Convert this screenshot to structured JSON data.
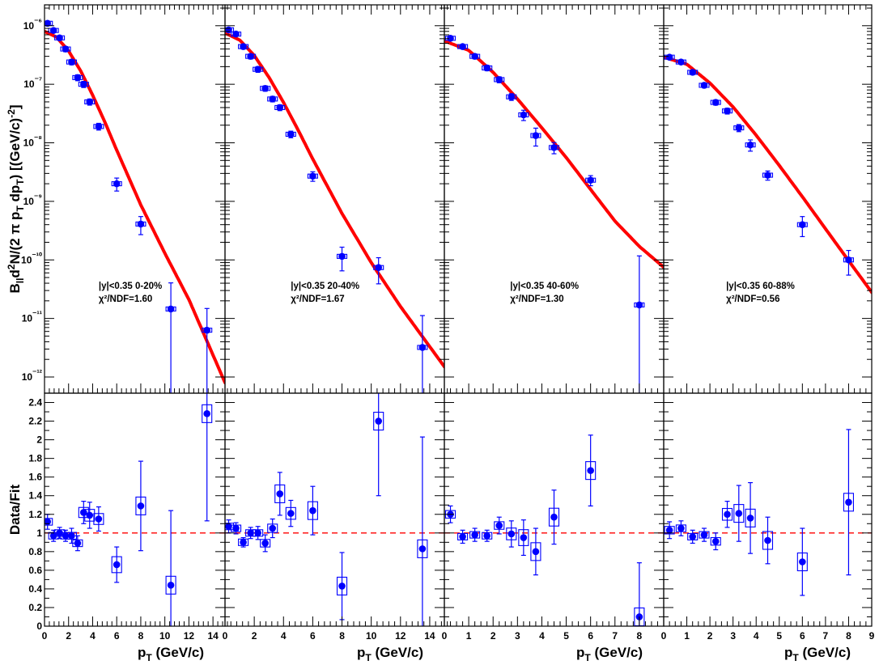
{
  "figure": {
    "y_label_top": "B_ll d²N/(2 π p_T dp_T) [(GeV/c)⁻²]",
    "y_label_bottom": "Data/Fit",
    "x_label": "p_T (GeV/c)",
    "colors": {
      "data": "#0000ff",
      "fit": "#ff0000",
      "reference": "#ff0000"
    }
  },
  "chart_data": [
    {
      "type": "scatter",
      "role": "spectrum",
      "label_rapidity": "|y|<0.35 0-20%",
      "label_chi2": "χ²/NDF=1.60",
      "log_y": true,
      "ylim": [
        1e-12,
        2e-06
      ],
      "y_tick_labels": [
        "10⁻⁶",
        "10⁻⁷",
        "10⁻⁸",
        "10⁻⁹",
        "10⁻¹⁰",
        "10⁻¹¹",
        "10⁻¹²"
      ],
      "xlim": [
        0,
        15
      ],
      "x_tick_labels": [
        "0",
        "2",
        "4",
        "6",
        "8",
        "10",
        "12",
        "14"
      ],
      "series": [
        {
          "x": [
            0.25,
            0.75,
            1.25,
            1.75,
            2.25,
            2.75,
            3.25,
            3.75,
            4.5,
            6.0,
            8.0,
            10.5,
            13.5
          ],
          "y": [
            1.1e-06,
            8.3e-07,
            6.2e-07,
            4e-07,
            2.4e-07,
            1.3e-07,
            1e-07,
            5e-08,
            1.9e-08,
            2e-09,
            4.1e-10,
            1.45e-11,
            6.3e-12
          ],
          "y_err": [
            8e-08,
            6e-08,
            5e-08,
            4e-08,
            2.5e-08,
            1.5e-08,
            1.2e-08,
            6e-09,
            2.5e-09,
            5e-10,
            1.4e-10,
            2.6e-11,
            8.5e-12
          ]
        }
      ],
      "fit": {
        "x": [
          0,
          1,
          2,
          3,
          4,
          5,
          6,
          8,
          10,
          12,
          15
        ],
        "y": [
          8e-07,
          6.4e-07,
          3.7e-07,
          1.7e-07,
          6.5e-08,
          2.3e-08,
          7.5e-09,
          8.7e-10,
          1.3e-10,
          2.1e-11,
          8e-13
        ]
      }
    },
    {
      "type": "scatter",
      "role": "spectrum",
      "label_rapidity": "|y|<0.35 20-40%",
      "label_chi2": "χ²/NDF=1.67",
      "log_y": true,
      "ylim": [
        1e-12,
        2e-06
      ],
      "xlim": [
        0,
        15
      ],
      "x_tick_labels": [
        "0",
        "2",
        "4",
        "6",
        "8",
        "10",
        "12",
        "14"
      ],
      "series": [
        {
          "x": [
            0.25,
            0.75,
            1.25,
            1.75,
            2.25,
            2.75,
            3.25,
            3.75,
            4.5,
            6.0,
            8.0,
            10.5,
            13.5
          ],
          "y": [
            8.5e-07,
            7.2e-07,
            4.4e-07,
            3e-07,
            1.8e-07,
            8.5e-08,
            5.6e-08,
            4e-08,
            1.4e-08,
            2.7e-09,
            1.15e-10,
            7.4e-11,
            3.2e-12
          ],
          "y_err": [
            6e-08,
            5e-08,
            4e-08,
            3e-08,
            2e-08,
            9e-09,
            6e-09,
            4.5e-09,
            1.8e-09,
            5e-10,
            5e-11,
            3.5e-11,
            8e-12
          ]
        }
      ],
      "fit": {
        "x": [
          0,
          1,
          2,
          3,
          4,
          5,
          6,
          8,
          10,
          12,
          15
        ],
        "y": [
          7.5e-07,
          5.7e-07,
          3.1e-07,
          1.32e-07,
          4.9e-08,
          1.65e-08,
          5.3e-09,
          6.2e-10,
          9e-11,
          1.6e-11,
          1.5e-12
        ]
      }
    },
    {
      "type": "scatter",
      "role": "spectrum",
      "label_rapidity": "|y|<0.35 40-60%",
      "label_chi2": "χ²/NDF=1.30",
      "log_y": true,
      "ylim": [
        1e-12,
        2e-06
      ],
      "xlim": [
        0,
        9
      ],
      "x_tick_labels": [
        "0",
        "1",
        "2",
        "3",
        "4",
        "5",
        "6",
        "7",
        "8"
      ],
      "series": [
        {
          "x": [
            0.25,
            0.75,
            1.25,
            1.75,
            2.25,
            2.75,
            3.25,
            3.75,
            4.5,
            6.0,
            8.0
          ],
          "y": [
            6.1e-07,
            4.4e-07,
            3e-07,
            1.9e-07,
            1.2e-07,
            6.1e-08,
            3e-08,
            1.33e-08,
            8.3e-09,
            2.3e-09,
            1.7e-11
          ],
          "y_err": [
            5e-08,
            3.5e-08,
            2.8e-08,
            2e-08,
            1.4e-08,
            8e-09,
            6e-09,
            4.5e-09,
            1.8e-09,
            4.5e-10,
            1e-10
          ]
        }
      ],
      "fit": {
        "x": [
          0,
          1,
          2,
          3,
          4,
          5,
          6,
          7,
          8,
          9
        ],
        "y": [
          5.5e-07,
          3.8e-07,
          1.6e-07,
          5.6e-08,
          1.8e-08,
          5.6e-09,
          1.6e-09,
          4.6e-10,
          1.7e-10,
          7.5e-11
        ]
      }
    },
    {
      "type": "scatter",
      "role": "spectrum",
      "label_rapidity": "|y|<0.35 60-88%",
      "label_chi2": "χ²/NDF=0.56",
      "log_y": true,
      "ylim": [
        1e-12,
        2e-06
      ],
      "xlim": [
        0,
        9
      ],
      "x_tick_labels": [
        "0",
        "1",
        "2",
        "3",
        "4",
        "5",
        "6",
        "7",
        "8",
        "9"
      ],
      "series": [
        {
          "x": [
            0.25,
            0.75,
            1.25,
            1.75,
            2.25,
            2.75,
            3.25,
            3.75,
            4.5,
            6.0,
            8.0
          ],
          "y": [
            2.9e-07,
            2.4e-07,
            1.6e-07,
            9.6e-08,
            4.9e-08,
            3.5e-08,
            1.8e-08,
            9.2e-09,
            2.8e-09,
            4e-10,
            1e-10
          ],
          "y_err": [
            2e-08,
            1.8e-08,
            1.4e-08,
            9e-09,
            5e-09,
            4e-09,
            2.5e-09,
            2e-09,
            5e-10,
            1.5e-10,
            4.5e-11
          ]
        }
      ],
      "fit": {
        "x": [
          0,
          1,
          2,
          3,
          4,
          5,
          6,
          7,
          8,
          9
        ],
        "y": [
          2.9e-07,
          2.2e-07,
          1.05e-07,
          4.1e-08,
          1.35e-08,
          4.1e-09,
          1.2e-09,
          3.4e-10,
          9.7e-11,
          2.8e-11
        ]
      }
    },
    {
      "type": "scatter",
      "role": "ratio",
      "ylim": [
        0,
        2.5
      ],
      "y_tick_labels": [
        "0",
        "0.2",
        "0.4",
        "0.6",
        "0.8",
        "1",
        "1.2",
        "1.4",
        "1.6",
        "1.8",
        "2",
        "2.2",
        "2.4"
      ],
      "xlim": [
        0,
        15
      ],
      "x_tick_labels": [
        "0",
        "2",
        "4",
        "6",
        "8",
        "10",
        "12",
        "14"
      ],
      "reference_y": 1,
      "series": [
        {
          "x": [
            0.25,
            0.75,
            1.25,
            1.75,
            2.25,
            2.75,
            3.25,
            3.75,
            4.5,
            6.0,
            8.0,
            10.5,
            13.5
          ],
          "y": [
            1.12,
            0.97,
            1.0,
            0.97,
            0.97,
            0.89,
            1.22,
            1.19,
            1.15,
            0.66,
            1.29,
            0.44,
            2.28
          ],
          "y_err": [
            0.08,
            0.06,
            0.06,
            0.06,
            0.08,
            0.08,
            0.12,
            0.14,
            0.13,
            0.19,
            0.48,
            0.8,
            1.15
          ]
        }
      ]
    },
    {
      "type": "scatter",
      "role": "ratio",
      "ylim": [
        0,
        2.5
      ],
      "xlim": [
        0,
        15
      ],
      "x_tick_labels": [
        "0",
        "2",
        "4",
        "6",
        "8",
        "10",
        "12",
        "14"
      ],
      "reference_y": 1,
      "series": [
        {
          "x": [
            0.25,
            0.75,
            1.25,
            1.75,
            2.25,
            2.75,
            3.25,
            3.75,
            4.5,
            6.0,
            8.0,
            10.5,
            13.5
          ],
          "y": [
            1.07,
            1.05,
            0.9,
            1.0,
            1.0,
            0.89,
            1.05,
            1.42,
            1.21,
            1.24,
            0.43,
            2.2,
            0.83
          ],
          "y_err": [
            0.07,
            0.06,
            0.05,
            0.06,
            0.07,
            0.09,
            0.1,
            0.23,
            0.14,
            0.26,
            0.36,
            0.8,
            1.2
          ]
        }
      ]
    },
    {
      "type": "scatter",
      "role": "ratio",
      "ylim": [
        0,
        2.5
      ],
      "xlim": [
        0,
        9
      ],
      "x_tick_labels": [
        "0",
        "1",
        "2",
        "3",
        "4",
        "5",
        "6",
        "7",
        "8"
      ],
      "reference_y": 1,
      "series": [
        {
          "x": [
            0.25,
            0.75,
            1.25,
            1.75,
            2.25,
            2.75,
            3.25,
            3.75,
            4.5,
            6.0,
            8.0
          ],
          "y": [
            1.2,
            0.96,
            0.98,
            0.97,
            1.08,
            0.99,
            0.95,
            0.8,
            1.17,
            1.67,
            0.1
          ],
          "y_err": [
            0.09,
            0.07,
            0.07,
            0.06,
            0.09,
            0.14,
            0.19,
            0.25,
            0.29,
            0.38,
            0.58
          ]
        }
      ]
    },
    {
      "type": "scatter",
      "role": "ratio",
      "ylim": [
        0,
        2.5
      ],
      "xlim": [
        0,
        9
      ],
      "x_tick_labels": [
        "0",
        "1",
        "2",
        "3",
        "4",
        "5",
        "6",
        "7",
        "8",
        "9"
      ],
      "reference_y": 1,
      "series": [
        {
          "x": [
            0.25,
            0.75,
            1.25,
            1.75,
            2.25,
            2.75,
            3.25,
            3.75,
            4.5,
            6.0,
            8.0
          ],
          "y": [
            1.03,
            1.05,
            0.96,
            0.98,
            0.91,
            1.2,
            1.21,
            1.16,
            0.92,
            0.69,
            1.33
          ],
          "y_err": [
            0.09,
            0.08,
            0.07,
            0.07,
            0.09,
            0.14,
            0.3,
            0.38,
            0.25,
            0.36,
            0.78
          ]
        }
      ]
    }
  ]
}
